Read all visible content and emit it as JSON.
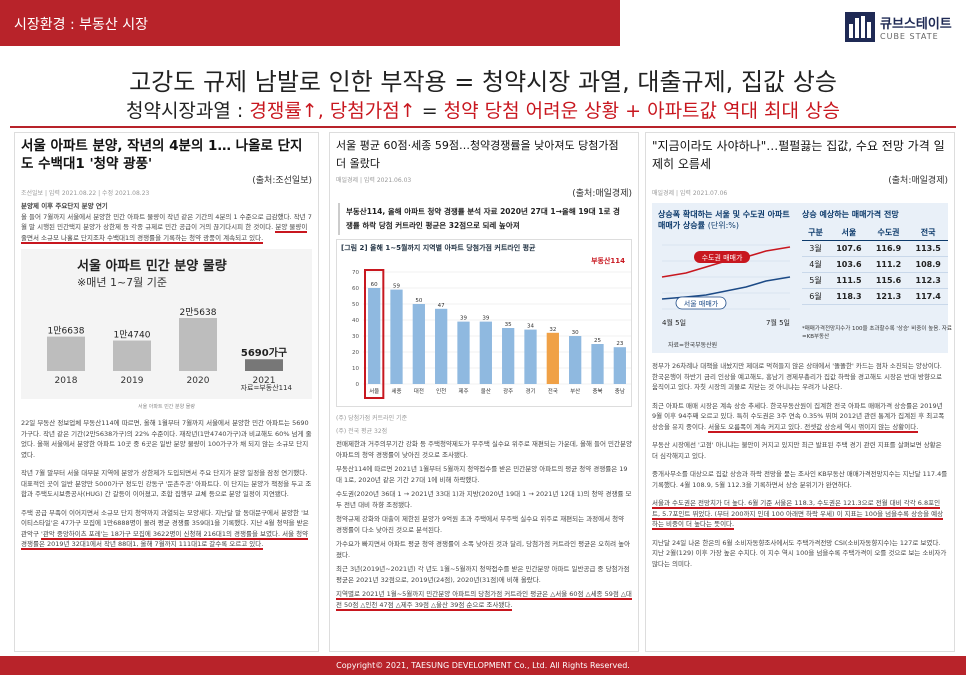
{
  "header": {
    "section_label": "시장환경 : 부동산 시장",
    "brand_name": "큐브스테이트",
    "brand_sub": "CUBE STATE"
  },
  "headline": "고강도 규제 남발로 인한 부작용 = 청약시장 과열, 대출규제, 집값 상승",
  "subline": {
    "prefix": "청약시장과열 :",
    "red1": "경쟁률↑, 당첨가점↑",
    "black": "=",
    "red2": "청약 당첨 어려운 상황 + 아파트값 역대 최대 상승"
  },
  "col1": {
    "title": "서울 아파트 분양, 작년의 4분의 1… 나올로 단지도 수백대1 '청약 광풍'",
    "source": "(출처:조선일보)",
    "meta": "조선일보 | 입력 2021.08.22 | 수정 2021.08.23",
    "lead_heading": "분양제 이후 주요단지 분양 연기",
    "lead": "올 들어 7월까지 서울에서 분양한 민간 아파트 물량이 작년 같은 기간의 4분의 1 수준으로 급감했다. 작년 7월 말 시행된 민간택지 분양가 상한제 등 각종 규제로 민간 공급이 거의 끊기다시피 한 것이다.",
    "lead_red": "분양 물량이 줄면서 소규모 나홀로 단지조차 수백대1의 경쟁률을 기록하는 청약 광풍이 계속되고 있다.",
    "chart": {
      "title": "서울 아파트 민간 분양 물량",
      "subtitle": "※매년 1~7월 기준",
      "source": "자료=부동산114",
      "caption": "서울 아파트 민간 분양 물량"
    },
    "p1": "22일 부동산 정보업체 부동산114에 따르면, 올해 1월부터 7월까지 서울에서 분양한 민간 아파트는 5690가구다. 작년 같은 기간(2만5638가구)의 22% 수준이다. 재작년(1만4740가구)과 비교해도 60% 넘게 줄었다. 올해 서울에서 분양한 아파트 10곳 중 6곳은 일반 분양 물량이 100가구가 채 되지 않는 소규모 단지였다.",
    "p2": "작년 7월 말부터 서울 대부분 지역에 분양가 상한제가 도입되면서 주요 단지가 분양 일정을 잠정 연기했다. 대표적인 곳이 일반 분양만 5000가구 정도인 강동구 '둔촌주공' 아파트다. 이 단지는 분양가 책정을 두고 조합과 주택도시보증공사(HUG) 간 갈등이 이어졌고, 조합 집행부 교체 등으로 분양 일정이 지연됐다.",
    "p3": "주택 공급 부족이 이어지면서 소규모 단지 청약까지 과열되는 모양새다. 지난달 말 동대문구에서 분양한 '브이티스타일'은 47가구 모집에 1만6888명이 몰려 평균 경쟁률 359대1을 기록했다. 지난 4월 청약을 받은 관악구",
    "p3_red": "'관악 중앙하이츠 포레'는 18가구 모집에 3622명이 신청해 216대1의 경쟁률을 보였다. 서울 청약 경쟁률은 2019년 32대1에서 작년 88대1, 올해 7월까지 111대1로 갈수록 오르고 있다."
  },
  "col2": {
    "title": "서울 평균 60점·세종 59점…청약경쟁률을 낮아져도 당첨가점 더 올랐다",
    "source": "(출처:매일경제)",
    "meta": "매일경제 | 입력 2021.06.03",
    "lead": "부동산114, 올해 아파트 청약 경쟁률 분석 자료 2020년 27대 1→올해 19대 1로 경쟁률 하락 당첨 커트라인 평균은 32점으로 되레 높아져",
    "chart": {
      "title": "[그림 2] 올해 1~5월까지 지역별 아파트 당첨가점 커트라인 평균",
      "brand": "부동산114",
      "note": "(주) 당첨가점 커트라인 기준",
      "note2": "(주) 전국 평균 32점"
    },
    "p1": "전매제한과 거주의무기간 강화 등 주택청약제도가 무주택 실수요 위주로 재편되는 가운데, 올해 들어 민간분양 아파트의 청약 경쟁률이 낮아진 것으로 조사됐다.",
    "p2": "부동산114에 따르면 2021년 1월부터 5월까지 청약접수를 받은 민간분양 아파트의 평균 청약 경쟁률은 19대 1로, 2020년 같은 기간 27대 1에 비해 하락했다.",
    "p3": "수도권(2020년 36대 1 → 2021년 33대 1)과 지방(2020년 19대 1 → 2021년 12대 1)의 청약 경쟁률 모두 전년 대비 하향 조정됐다.",
    "p4": "청약규제 강화와 대출이 제한된 분양가 9억원 초과 주택에서 무주택 실수요 위주로 재편되는 과정에서 청약 경쟁률이 다소 낮아진 것으로 분석된다.",
    "p5": "가수요가 빠지면서 아파트 평균 청약 경쟁률이 소폭 낮아진 것과 달리, 당첨가점 커트라인 평균은 오히려 높아졌다.",
    "p6": "최근 3년(2019년~2021년) 각 년도 1월~5월까지 청약접수를 받은 민간분양 아파트 일반공급 중 당첨가점 평균은 2021년 32점으로, 2019년(24점), 2020년(31점)에 비해 올랐다.",
    "p7_red": "지역별로 2021년 1월~5월까지 민간분양 아파트의 당첨가점 커트라인 평균은 △서울 60점 △세종 59점 △대전 50점 △인천 47점 △제주 39점 △울산 39점 순으로 조사됐다."
  },
  "col3": {
    "title": "\"지금이라도 사야하나\"…펄펄끓는 집값, 수요 전망 가격 일제히 오름세",
    "source": "(출처:매일경제)",
    "meta": "매일경제 | 입력 2021.07.06",
    "panel": {
      "left_title": "상승폭 확대하는 서울 및 수도권 아파트 매매가 상승률",
      "left_unit": "(단위:%)",
      "line1": "수도권 매매가",
      "line2": "서울 매매가",
      "date1": "4월 5일",
      "date2": "7월 5일",
      "src_left": "자료=한국부동산원",
      "right_title": "상승 예상하는 매매가격 전망",
      "right_note": "*매매가격전망지수가 100을 초과할수록 '상승' 비중이 높음. 자료=KB부동산"
    },
    "table": {
      "headers": [
        "구분",
        "서울",
        "수도권",
        "전국"
      ],
      "rows": [
        [
          "3월",
          "107.6",
          "116.9",
          "113.5"
        ],
        [
          "4월",
          "103.6",
          "111.2",
          "108.9"
        ],
        [
          "5월",
          "111.5",
          "115.6",
          "112.3"
        ],
        [
          "6월",
          "118.3",
          "121.3",
          "117.4"
        ]
      ]
    },
    "p1": "정부가 26차례나 대책을 내놨지만 제대로 먹혀들지 않은 상태에서 '똘똘한' 카드는 점차 소진되는 양상이다. 한국은행이 하반기 금리 인상을 예고해도, 홍남기 경제부총리가 집값 하락을 경고해도 시장은 반대 방향으로 움직이고 있다. 자칫 시장의 괴물로 치닫는 것 아니냐는 우려가 나온다.",
    "p2": "최근 아파트 매매 시장은 계속 상승 추세다. 한국부동산원이 집계한 전국 아파트 매매가격 상승률은 2019년 9월 이후 94주째 오르고 있다. 특히 수도권은 3주 연속 0.35% 뛰며 2012년 관련 통계가 집계된 후 최고폭 상승을 유지 중이다.",
    "p2_red": "서울도 오름폭이 계속 커지고 있다. 전셋값 상승세 역시 꺾이지 않는 상황이다.",
    "p3": "부동산 시장에선 '고점' 아니냐는 불안이 커지고 있지만 최근 발표된 주택 경기 관련 지표를 살펴보면 상황은 더 심각해지고 있다.",
    "p4": "중개사무소를 대상으로 집값 상승과 하락 전망을 묻는 조사인 KB부동산 매매가격전망지수는 지난달 117.4를 기록했다. 4월 108.9, 5월 112.3을 기록하면서 상승 분위기가 완연하다.",
    "p5_red": "서울과 수도권은 전망치가 더 높다. 6월 기준 서울은 118.3, 수도권은 121.3으로 전월 대비 각각 6.8포인트, 5.7포인트 뛰었다. (부터 200까지 인데 100 아래면 하락 우세) 이 지표는 100을 넘을수록 상승을 예상하는 비중이 더 높다는 뜻이다.",
    "p6": "지난달 24일 나온 한은의 6월 소비자동향조사에서도 주택가격전망 CSI(소비자동향지수)는 127로 보였다. 지난 2월(129) 이후 가장 높은 수치다. 이 지수 역시 100을 넘을수록 주택가격이 오를 것으로 보는 소비자가 많다는 의미다."
  },
  "footer": "Copyright© 2021, TAESUNG DEVELOPMENT Co., Ltd. All Rights Reserved.",
  "chart_data": [
    {
      "type": "bar",
      "title": "서울 아파트 민간 분양 물량",
      "subtitle": "※매년 1~7월 기준",
      "categories": [
        "2018",
        "2019",
        "2020",
        "2021"
      ],
      "values": [
        16638,
        14740,
        25638,
        5690
      ],
      "value_labels": [
        "1만6638",
        "1만4740",
        "2만5638",
        "5690가구"
      ],
      "source": "자료=부동산114"
    },
    {
      "type": "bar",
      "title": "[그림 2] 올해 1~5월까지 지역별 아파트 당첨가점 커트라인 평균",
      "categories": [
        "서울",
        "세종",
        "대전",
        "인천",
        "제주",
        "울산",
        "광주",
        "경기",
        "전국",
        "부산",
        "충북",
        "충남"
      ],
      "values": [
        60,
        59,
        50,
        47,
        39,
        39,
        35,
        34,
        32,
        30,
        25,
        23
      ],
      "ylim": [
        0,
        70
      ],
      "yticks": [
        0,
        10,
        20,
        30,
        40,
        50,
        60,
        70
      ],
      "highlight": "전국",
      "brand": "부동산114"
    },
    {
      "type": "line",
      "title": "상승폭 확대하는 서울 및 수도권 아파트 매매가 상승률",
      "unit": "(단위:%)",
      "x": [
        "4월 5일",
        "7월 5일"
      ],
      "series": [
        {
          "name": "수도권 매매가",
          "trend": "rising"
        },
        {
          "name": "서울 매매가",
          "trend": "rising"
        }
      ]
    }
  ]
}
